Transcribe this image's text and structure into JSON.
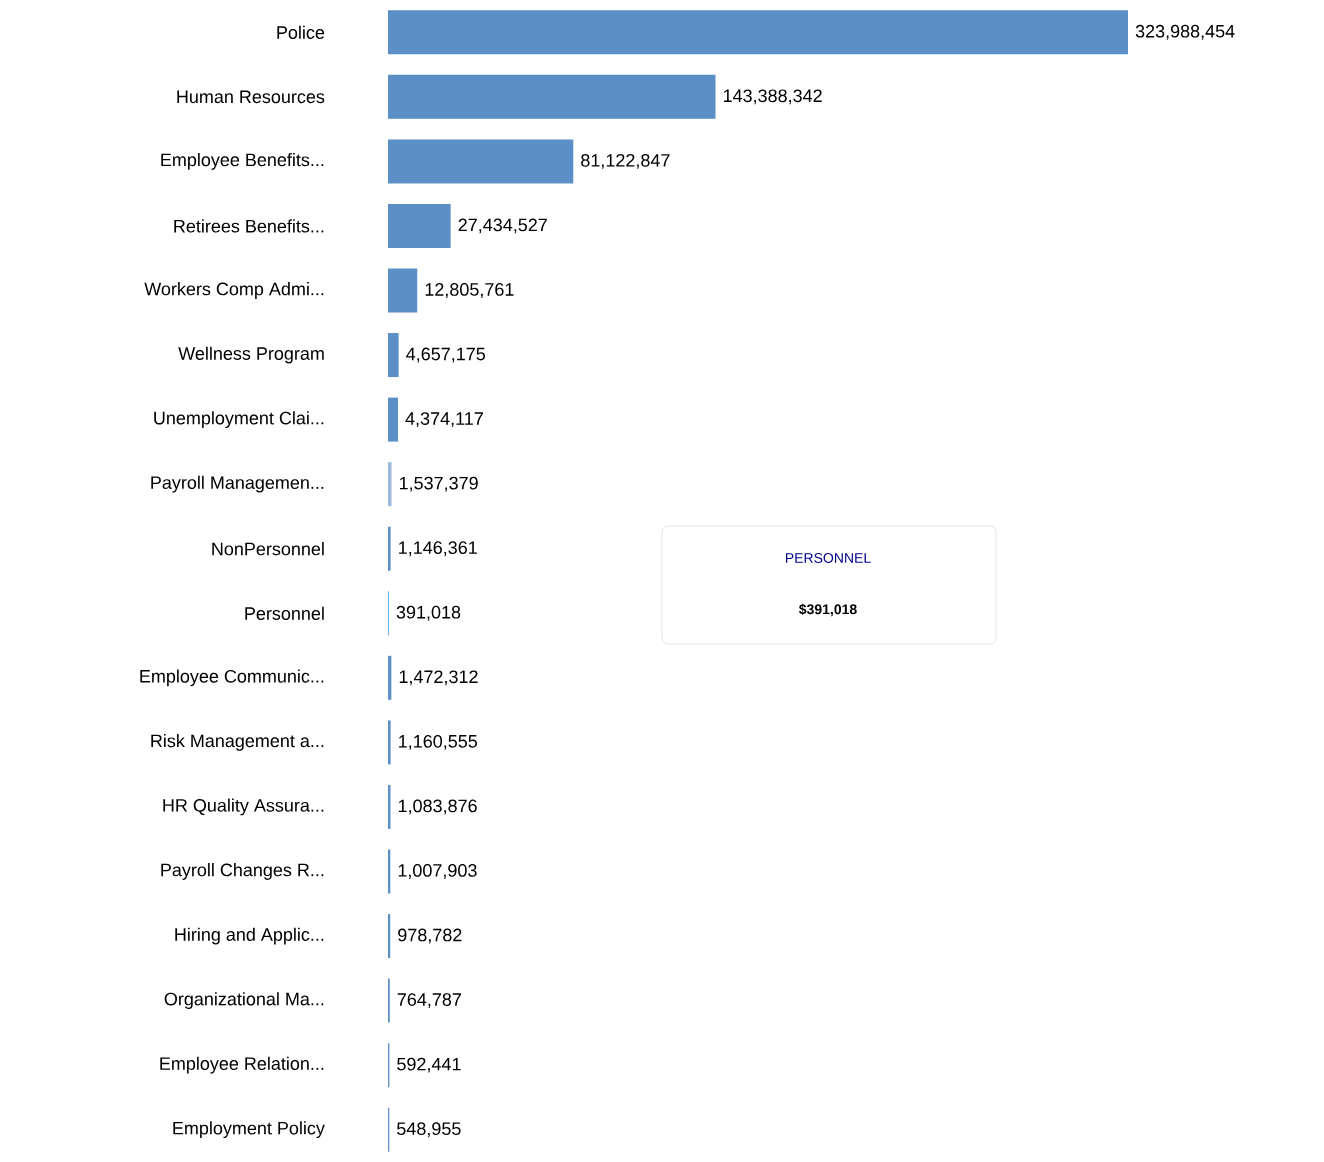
{
  "chart_data": {
    "type": "bar",
    "orientation": "horizontal",
    "data_labels": true,
    "categories": [
      "Police",
      "Human Resources",
      "Employee Benefits...",
      "Retirees Benefits...",
      "Workers Comp Admi...",
      "Wellness Program",
      "Unemployment Clai...",
      "Payroll Managemen...",
      "NonPersonnel",
      "Personnel",
      "Employee Communic...",
      "Risk Management a...",
      "HR Quality Assura...",
      "Payroll Changes R...",
      "Hiring and Applic...",
      "Organizational Ma...",
      "Employee Relation...",
      "Employment Policy"
    ],
    "values": [
      323988454,
      143388342,
      81122847,
      27434527,
      12805761,
      4657175,
      4374117,
      1537379,
      1146361,
      391018,
      1472312,
      1160555,
      1083876,
      1007903,
      978782,
      764787,
      592441,
      548955
    ],
    "value_labels": [
      "323,988,454",
      "143,388,342",
      "81,122,847",
      "27,434,527",
      "12,805,761",
      "4,657,175",
      "4,374,117",
      "1,537,379",
      "1,146,361",
      "391,018",
      "1,472,312",
      "1,160,555",
      "1,083,876",
      "1,007,903",
      "978,782",
      "764,787",
      "592,441",
      "548,955"
    ],
    "colors": [
      "#5b8fc6",
      "#5b8fc6",
      "#5b8fc6",
      "#5b8fc6",
      "#5b8fc6",
      "#5b8fc6",
      "#5b8fc6",
      "#9ab8da",
      "#5b8fc6",
      "#4aa8f7",
      "#5b8fc6",
      "#5b8fc6",
      "#5b8fc6",
      "#5b8fc6",
      "#5b8fc6",
      "#5b8fc6",
      "#5b8fc6",
      "#5b8fc6"
    ],
    "annotations": [
      "PERSONNEL",
      "$391,018"
    ]
  }
}
